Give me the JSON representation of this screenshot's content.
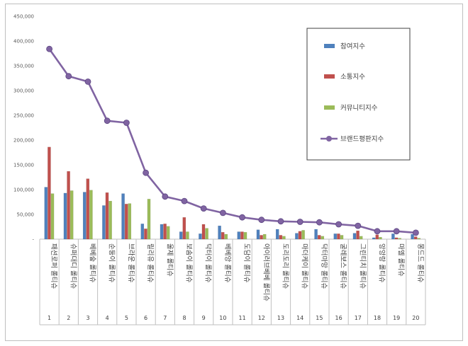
{
  "chart_data": {
    "type": "bar",
    "categories": [
      "1",
      "2",
      "3",
      "4",
      "5",
      "6",
      "7",
      "8",
      "9",
      "10",
      "11",
      "12",
      "13",
      "14",
      "15",
      "16",
      "17",
      "18",
      "19",
      "20"
    ],
    "category_labels": [
      "패션로퍼 롤티슈",
      "슈퍼대디 롤티슈",
      "베베숲 롤티슈",
      "순둥이 롤티슈",
      "브라운 롤티슈",
      "릴리유 롤티슈",
      "울제 롤티슈",
      "보솜이 롤티슈",
      "닥터이 롤티슈",
      "베베앙 롤티슈",
      "도담이 롤티슈",
      "아이러브베베 롤티슈",
      "도리도리 롤티슈",
      "마더케이 롤티슈",
      "닥터마망 롤티슈",
      "굴레보스 롤티슈",
      "그린티치 롤티슈",
      "앙앙랑 롤티슈",
      "마엘 롤티슈",
      "몽드드 롤티슈"
    ],
    "series": [
      {
        "name": "참여지수",
        "type": "bar",
        "color": "#4f81bd",
        "values": [
          105000,
          93000,
          95000,
          68000,
          92000,
          31000,
          30000,
          15000,
          11000,
          27000,
          15000,
          19000,
          20000,
          12000,
          20000,
          11000,
          12000,
          3000,
          11000,
          10000
        ]
      },
      {
        "name": "소통지수",
        "type": "bar",
        "color": "#c0504d",
        "values": [
          186000,
          137000,
          122000,
          94000,
          71000,
          21000,
          31000,
          44000,
          30000,
          14000,
          15000,
          8000,
          8000,
          16000,
          8000,
          11000,
          17000,
          9000,
          3000,
          5000
        ]
      },
      {
        "name": "커뮤니티지수",
        "type": "bar",
        "color": "#9bbb59",
        "values": [
          92000,
          98000,
          99000,
          77000,
          72000,
          81000,
          26000,
          15000,
          22000,
          10000,
          14000,
          10000,
          6000,
          18000,
          6000,
          8000,
          6000,
          4000,
          2000,
          2000
        ]
      },
      {
        "name": "브랜드평판지수",
        "type": "line",
        "color": "#8064a2",
        "values": [
          384000,
          329000,
          318000,
          239000,
          235000,
          134000,
          86000,
          77000,
          62000,
          53000,
          44000,
          39000,
          36000,
          35000,
          34000,
          30000,
          27000,
          16000,
          16000,
          13000
        ]
      }
    ],
    "yticks": [
      "-",
      "50,000",
      "100,000",
      "150,000",
      "200,000",
      "250,000",
      "300,000",
      "350,000",
      "400,000",
      "450,000"
    ],
    "ylim": [
      0,
      450000
    ],
    "legend_position": "top-right",
    "grid": false
  }
}
